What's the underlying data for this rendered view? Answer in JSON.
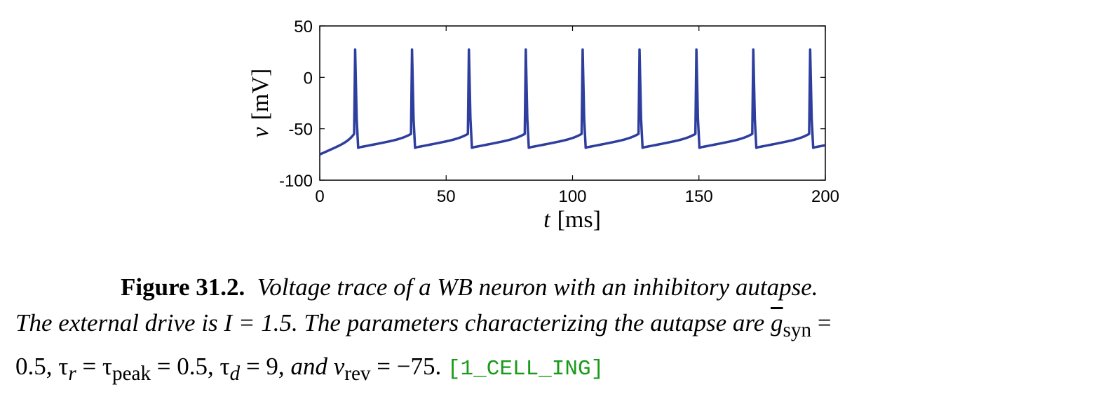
{
  "chart_data": {
    "type": "line",
    "title": "",
    "xlabel_var": "t",
    "xlabel_unit": "[ms]",
    "ylabel_var": "v",
    "ylabel_unit": "[mV]",
    "xlim": [
      0,
      200
    ],
    "ylim": [
      -100,
      50
    ],
    "xticks": [
      "0",
      "50",
      "100",
      "150",
      "200"
    ],
    "yticks": [
      "50",
      "0",
      "-50",
      "-100"
    ],
    "grid": false,
    "line_color": "#2e3e9e",
    "start_voltage": -75,
    "reset_voltage": -68,
    "threshold_voltage": -55,
    "spike_peak": 27,
    "spike_times": [
      14,
      36.5,
      59,
      81.5,
      104,
      126.5,
      149,
      171.5,
      194
    ]
  },
  "caption": {
    "figure_label": "Figure 31.2.",
    "line1": "Voltage trace of a WB neuron with an inhibitory autapse.",
    "line2a": "The external drive is ",
    "line2_math": "I = 1.5.",
    "line2b": " The parameters characterizing the autapse are ",
    "gsyn": "g",
    "gsyn_sub": "syn",
    "line2_eq": " =",
    "line3": "0.5, τ",
    "tau_r_sub": "r",
    "line3b": " = τ",
    "tau_peak_sub": "peak",
    "line3c": " = 0.5, τ",
    "tau_d_sub": "d",
    "line3d": " = 9, ",
    "and_text": "and",
    "line3e": " v",
    "vrev_sub": "rev",
    "line3f": " = −75. ",
    "code_ref": "[1_CELL_ING]"
  }
}
